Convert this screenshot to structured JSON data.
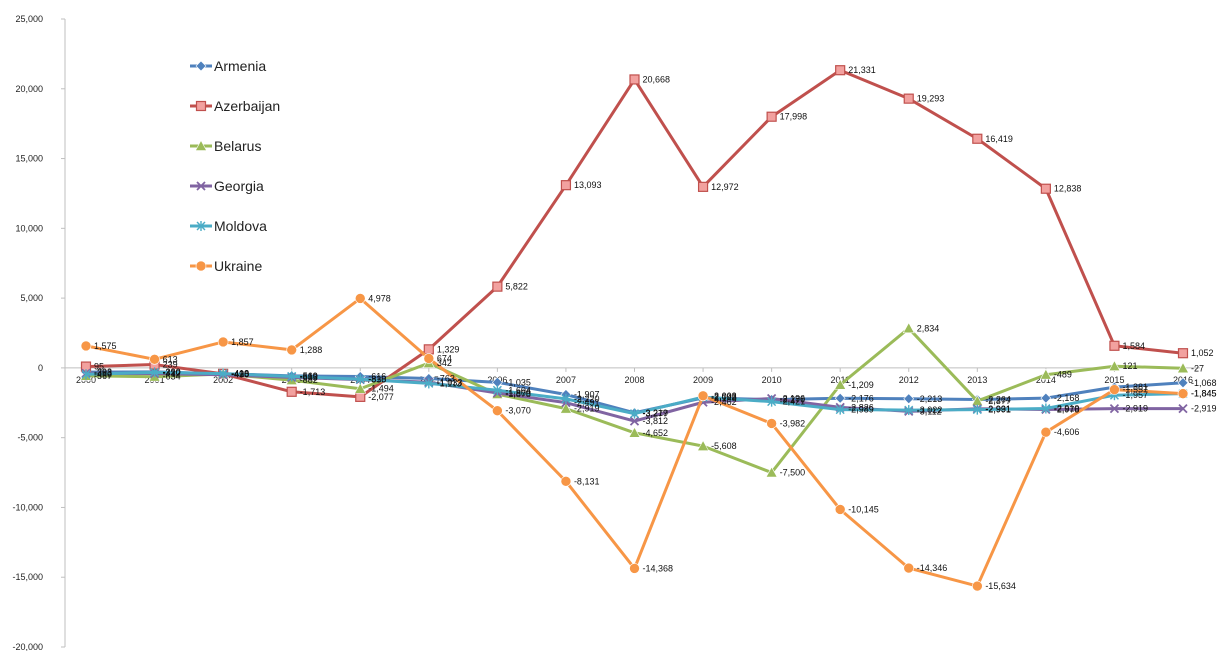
{
  "chart_data": {
    "type": "line",
    "title": "",
    "xlabel": "",
    "ylabel": "",
    "ylim": [
      -20000,
      25000
    ],
    "yticks": [
      25000,
      20000,
      15000,
      10000,
      5000,
      0,
      -5000,
      -10000,
      -15000,
      -20000
    ],
    "ytick_labels": [
      "25,000",
      "20,000",
      "15,000",
      "10,000",
      "5,000",
      "0",
      "-5,000",
      "-10,000",
      "-15,000",
      "-20,000"
    ],
    "grid": false,
    "legend_position": "top-left",
    "categories": [
      "2000",
      "2001",
      "2002",
      "2003",
      "2004",
      "2005",
      "2006",
      "2007",
      "2008",
      "2009",
      "2010",
      "2011",
      "2012",
      "2013",
      "2014",
      "2015",
      "2016"
    ],
    "series": [
      {
        "name": "Armenia",
        "color": "#4f81bd",
        "marker": "diamond",
        "values": [
          -303,
          -290,
          -416,
          -569,
          -616,
          -763,
          -1035,
          -1907,
          -3219,
          -2148,
          -2270,
          -2176,
          -2213,
          -2264,
          -2168,
          -1381,
          -1068
        ]
      },
      {
        "name": "Azerbaijan",
        "color": "#c0504d",
        "marker": "square",
        "values": [
          95,
          239,
          -428,
          -1713,
          -2077,
          1329,
          5822,
          13093,
          20668,
          12972,
          17998,
          21331,
          19293,
          16419,
          12838,
          1584,
          1052
        ]
      },
      {
        "name": "Belarus",
        "color": "#9bbb59",
        "marker": "triangle",
        "values": [
          -567,
          -634,
          -436,
          -882,
          -1494,
          342,
          -1878,
          -2919,
          -4652,
          -5608,
          -7500,
          -1209,
          2834,
          -2377,
          -489,
          121,
          -27
        ]
      },
      {
        "name": "Georgia",
        "color": "#8064a2",
        "marker": "x",
        "values": [
          -383,
          -412,
          -490,
          -683,
          -838,
          -1033,
          -1800,
          -2491,
          -3812,
          -2462,
          -2196,
          -2826,
          -3112,
          -2931,
          -2978,
          -2919,
          -2919
        ]
      },
      {
        "name": "Moldova",
        "color": "#4bacc6",
        "marker": "star",
        "values": [
          -460,
          -320,
          -410,
          -610,
          -810,
          -1113,
          -1604,
          -2220,
          -3277,
          -2093,
          -2421,
          -2989,
          -3022,
          -2991,
          -2910,
          -1957,
          -1845
        ]
      },
      {
        "name": "Ukraine",
        "color": "#f79646",
        "marker": "circle",
        "values": [
          1575,
          613,
          1857,
          1288,
          4978,
          674,
          -3070,
          -8131,
          -14368,
          -2003,
          -3982,
          -10145,
          -14346,
          -15634,
          -4606,
          -1557,
          -1845
        ]
      }
    ],
    "data_labels": [
      [
        "-303",
        "-290",
        "-416",
        "-569",
        "-616",
        "-763",
        "-1,035",
        "-1,907",
        "-3,219",
        "-2,148",
        "-2,270",
        "-2,176",
        "-2,213",
        "-2,264",
        "-2,168",
        "-1,381",
        "-1,068"
      ],
      [
        "95",
        "239",
        "-428",
        "-1,713",
        "-2,077",
        "1,329",
        "5,822",
        "13,093",
        "20,668",
        "12,972",
        "17,998",
        "21,331",
        "19,293",
        "16,419",
        "12,838",
        "1,584",
        "1,052"
      ],
      [
        "-567",
        "-634",
        "-436",
        "-882",
        "-1,494",
        "342",
        "-1,878",
        "-2,919",
        "-4,652",
        "-5,608",
        "-7,500",
        "-1,209",
        "2,834",
        "-2,377",
        "-489",
        "121",
        "-27"
      ],
      [
        "-383",
        "-412",
        "-490",
        "-683",
        "-838",
        "-1,033",
        "-1,800",
        "-2,491",
        "-3,812",
        "-2,462",
        "-2,196",
        "-2,826",
        "-3,112",
        "-2,931",
        "-2,978",
        "-2,919",
        "-2,919"
      ],
      [
        "-460",
        "-320",
        "-410",
        "-610",
        "-810",
        "-1,113",
        "-1,604",
        "-2,220",
        "-3,277",
        "-2,093",
        "-2,421",
        "-2,989",
        "-3,022",
        "-2,991",
        "-2,910",
        "-1,957",
        "-1,845"
      ],
      [
        "1,575",
        "613",
        "1,857",
        "1,288",
        "4,978",
        "674",
        "-3,070",
        "-8,131",
        "-14,368",
        "-2,003",
        "-3,982",
        "-10,145",
        "-14,346",
        "-15,634",
        "-4,606",
        "-1,557",
        "-1,845"
      ]
    ]
  }
}
